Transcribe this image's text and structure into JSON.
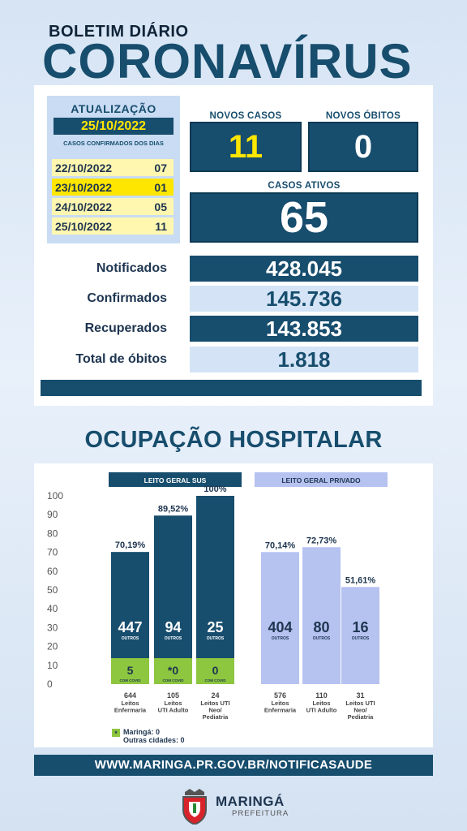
{
  "header": {
    "small_title": "BOLETIM DIÁRIO",
    "big_title": "CORONAVÍRUS"
  },
  "update": {
    "label": "ATUALIZAÇÃO",
    "date": "25/10/2022",
    "subtitle": "CASOS CONFIRMADOS DOS DIAS",
    "days": [
      {
        "date": "22/10/2022",
        "count": "07",
        "highlight": false
      },
      {
        "date": "23/10/2022",
        "count": "01",
        "highlight": true
      },
      {
        "date": "24/10/2022",
        "count": "05",
        "highlight": false
      },
      {
        "date": "25/10/2022",
        "count": "11",
        "highlight": false
      }
    ]
  },
  "cards": {
    "novos_casos_label": "NOVOS CASOS",
    "novos_casos_value": "11",
    "novos_obitos_label": "NOVOS ÓBITOS",
    "novos_obitos_value": "0",
    "casos_ativos_label": "CASOS ATIVOS",
    "casos_ativos_value": "65"
  },
  "stats": [
    {
      "label": "Notificados",
      "value": "428.045",
      "style": "dark"
    },
    {
      "label": "Confirmados",
      "value": "145.736",
      "style": "light"
    },
    {
      "label": "Recuperados",
      "value": "143.853",
      "style": "dark"
    },
    {
      "label": "Total de óbitos",
      "value": "1.818",
      "style": "light"
    }
  ],
  "ocupacao_title": "OCUPAÇÃO HOSPITALAR",
  "chart_data": {
    "type": "bar",
    "title": "",
    "ylim": [
      0,
      100
    ],
    "yticks": [
      "100",
      "90",
      "80",
      "70",
      "60",
      "50",
      "40",
      "30",
      "20",
      "10",
      "0"
    ],
    "groups": [
      {
        "name": "LEITO GERAL SUS",
        "bars": [
          {
            "category": "644 Leitos Enfermaria",
            "percent": 70.19,
            "percent_label": "70,19%",
            "outros": "447",
            "outros_label": "OUTROS",
            "covid": "5",
            "covid_label": "COM COVID",
            "total": "644",
            "desc": [
              "Leitos",
              "Enfermaria"
            ]
          },
          {
            "category": "105 Leitos UTI Adulto",
            "percent": 89.52,
            "percent_label": "89,52%",
            "outros": "94",
            "outros_label": "OUTROS",
            "covid": "*0",
            "covid_label": "COM COVID",
            "total": "105",
            "desc": [
              "Leitos",
              "UTI Adulto"
            ]
          },
          {
            "category": "24 Leitos UTI Neo/ Pediatria",
            "percent": 100,
            "percent_label": "100%",
            "outros": "25",
            "outros_label": "OUTROS",
            "covid": "0",
            "covid_label": "COM COVID",
            "total": "24",
            "desc": [
              "Leitos UTI",
              "Neo/",
              "Pediatria"
            ]
          }
        ]
      },
      {
        "name": "LEITO GERAL PRIVADO",
        "bars": [
          {
            "category": "576 Leitos Enfermaria",
            "percent": 70.14,
            "percent_label": "70,14%",
            "outros": "404",
            "outros_label": "OUTROS",
            "total": "576",
            "desc": [
              "Leitos",
              "Enfermaria"
            ]
          },
          {
            "category": "110 Leitos UTI Adulto",
            "percent": 72.73,
            "percent_label": "72,73%",
            "outros": "80",
            "outros_label": "OUTROS",
            "total": "110",
            "desc": [
              "Leitos",
              "UTI Adulto"
            ]
          },
          {
            "category": "31 Leitos UTI Neo/ Pediatria",
            "percent": 51.61,
            "percent_label": "51,61%",
            "outros": "16",
            "outros_label": "OUTROS",
            "total": "31",
            "desc": [
              "Leitos UTI",
              "Neo/",
              "Pediatria"
            ]
          }
        ]
      }
    ],
    "footnote": {
      "marker": "*",
      "lines": [
        "Maringá: 0",
        "Outras cidades: 0"
      ]
    },
    "colors": {
      "sus_bar": "#174d6d",
      "covid_bar": "#8dc63f",
      "private_bar": "#b6c2f0",
      "private_header": "#b6c2f0"
    }
  },
  "footer": {
    "url": "WWW.MARINGA.PR.GOV.BR/NOTIFICASAUDE"
  },
  "logo": {
    "name": "MARINGÁ",
    "sub": "PREFEITURA",
    "icon": "coat-of-arms-icon"
  }
}
